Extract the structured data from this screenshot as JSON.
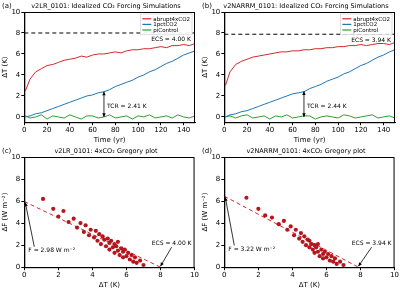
{
  "chart_data": [
    {
      "type": "line",
      "label": "(a)",
      "title": "v2LR_0101: Idealized CO₂ Forcing Simulations",
      "x_label": "Time (yr)",
      "y_label": "ΔT (K)",
      "xlim": [
        0,
        150
      ],
      "xticks": [
        0,
        20,
        40,
        60,
        80,
        100,
        120,
        140
      ],
      "ylim": [
        -0.5,
        10
      ],
      "yticks": [
        0,
        2,
        4,
        6,
        8,
        10
      ],
      "grid": false,
      "legend": "upper right",
      "x": [
        1,
        5,
        10,
        15,
        20,
        25,
        30,
        35,
        40,
        45,
        50,
        55,
        60,
        65,
        70,
        75,
        80,
        85,
        90,
        95,
        100,
        105,
        110,
        115,
        120,
        125,
        130,
        135,
        140,
        145,
        150
      ],
      "series": [
        {
          "name": "abrupt4xCO2",
          "color": "#d62728",
          "values": [
            2.5,
            3.6,
            4.3,
            4.6,
            4.9,
            5.0,
            5.2,
            5.4,
            5.5,
            5.6,
            5.8,
            5.7,
            5.9,
            6.0,
            6.0,
            6.1,
            6.2,
            6.1,
            6.3,
            6.4,
            6.4,
            6.5,
            6.5,
            6.6,
            6.7,
            6.6,
            6.8,
            6.8,
            6.9,
            6.8,
            7.0
          ]
        },
        {
          "name": "1pctCO2",
          "color": "#1f77b4",
          "values": [
            0.0,
            0.1,
            0.3,
            0.4,
            0.6,
            0.8,
            1.0,
            1.2,
            1.4,
            1.6,
            1.8,
            2.0,
            2.1,
            2.3,
            2.4,
            2.6,
            2.9,
            3.1,
            3.3,
            3.5,
            3.8,
            4.0,
            4.3,
            4.5,
            4.8,
            5.1,
            5.3,
            5.6,
            5.9,
            6.1,
            6.3
          ]
        },
        {
          "name": "piControl",
          "color": "#2ca02c",
          "values": [
            0.1,
            -0.1,
            0.0,
            0.2,
            -0.2,
            0.1,
            0.0,
            -0.1,
            0.2,
            0.0,
            -0.2,
            0.1,
            0.1,
            -0.1,
            0.0,
            0.2,
            -0.1,
            0.0,
            0.1,
            -0.2,
            0.1,
            0.0,
            0.2,
            -0.1,
            0.0,
            0.1,
            -0.1,
            0.2,
            0.0,
            -0.1,
            0.1
          ]
        }
      ],
      "hline": {
        "value": 8.0,
        "color": "#000000",
        "line_style": "dashed"
      },
      "annotations": [
        {
          "text": "ECS = 4.00 K"
        },
        {
          "text": "TCR = 2.41 K",
          "x": 70,
          "y": 2.41
        }
      ]
    },
    {
      "type": "line",
      "label": "(b)",
      "title": "v2NARRM_0101: Idealized CO₂ Forcing Simulations",
      "x_label": "Time (yr)",
      "y_label": "ΔT (K)",
      "xlim": [
        0,
        150
      ],
      "xticks": [
        0,
        20,
        40,
        60,
        80,
        100,
        120,
        140
      ],
      "ylim": [
        -0.5,
        10
      ],
      "yticks": [
        0,
        2,
        4,
        6,
        8,
        10
      ],
      "grid": false,
      "legend": "upper right",
      "x": [
        1,
        5,
        10,
        15,
        20,
        25,
        30,
        35,
        40,
        45,
        50,
        55,
        60,
        65,
        70,
        75,
        80,
        85,
        90,
        95,
        100,
        105,
        110,
        115,
        120,
        125,
        130,
        135,
        140,
        145,
        150
      ],
      "series": [
        {
          "name": "abrupt4xCO2",
          "color": "#d62728",
          "values": [
            3.0,
            4.3,
            5.0,
            5.3,
            5.5,
            5.7,
            5.8,
            5.9,
            6.0,
            6.1,
            6.2,
            6.2,
            6.3,
            6.3,
            6.4,
            6.4,
            6.5,
            6.5,
            6.6,
            6.6,
            6.7,
            6.7,
            6.8,
            6.8,
            6.9,
            6.8,
            6.9,
            7.0,
            7.0,
            6.9,
            7.1
          ]
        },
        {
          "name": "1pctCO2",
          "color": "#1f77b4",
          "values": [
            0.0,
            0.2,
            0.3,
            0.5,
            0.6,
            0.8,
            1.0,
            1.2,
            1.4,
            1.6,
            1.8,
            2.0,
            2.2,
            2.3,
            2.4,
            2.7,
            2.9,
            3.1,
            3.4,
            3.6,
            3.8,
            4.1,
            4.3,
            4.6,
            4.9,
            5.1,
            5.4,
            5.7,
            5.9,
            6.2,
            6.4
          ]
        },
        {
          "name": "piControl",
          "color": "#2ca02c",
          "values": [
            0.0,
            0.1,
            -0.1,
            0.1,
            0.2,
            -0.1,
            0.0,
            0.1,
            -0.2,
            0.1,
            0.0,
            0.2,
            -0.1,
            0.0,
            0.1,
            0.1,
            -0.2,
            0.0,
            0.1,
            0.0,
            -0.1,
            0.2,
            0.1,
            -0.1,
            0.0,
            0.1,
            0.2,
            -0.1,
            0.0,
            0.1,
            -0.1
          ]
        }
      ],
      "hline": {
        "value": 7.88,
        "color": "#000000",
        "line_style": "dashed"
      },
      "annotations": [
        {
          "text": "ECS = 3.94 K"
        },
        {
          "text": "TCR = 2.44 K",
          "x": 70,
          "y": 2.44
        }
      ]
    },
    {
      "type": "scatter",
      "label": "(c)",
      "title": "v2LR_0101: 4xCO₂ Gregory plot",
      "x_label": "ΔT (K)",
      "y_label": "ΔF (W m⁻²)",
      "xlim": [
        0,
        10
      ],
      "xticks": [
        0,
        2,
        4,
        6,
        8,
        10
      ],
      "ylim": [
        0,
        10
      ],
      "yticks": [
        0,
        2,
        4,
        6,
        8,
        10
      ],
      "grid": false,
      "points": {
        "color": "#b5161e",
        "x": [
          1.1,
          1.7,
          2.0,
          2.3,
          2.6,
          2.9,
          3.1,
          3.3,
          3.5,
          3.6,
          3.8,
          3.9,
          4.1,
          4.2,
          4.3,
          4.4,
          4.5,
          4.6,
          4.7,
          4.8,
          4.9,
          5.0,
          5.0,
          5.1,
          5.2,
          5.3,
          5.3,
          5.4,
          5.5,
          5.5,
          5.6,
          5.7,
          5.8,
          5.8,
          5.9,
          6.0,
          6.1,
          6.2,
          6.3,
          6.4,
          6.5,
          6.6,
          6.8,
          7.0
        ],
        "y": [
          6.2,
          5.3,
          4.6,
          5.1,
          4.1,
          4.4,
          3.6,
          4.0,
          3.2,
          3.8,
          2.9,
          3.4,
          2.7,
          3.3,
          2.4,
          3.0,
          2.1,
          2.8,
          2.5,
          1.9,
          2.6,
          2.2,
          1.6,
          2.4,
          1.8,
          2.1,
          1.3,
          1.9,
          1.5,
          2.3,
          1.1,
          1.7,
          1.4,
          0.9,
          1.6,
          1.0,
          1.3,
          0.7,
          1.1,
          0.5,
          0.9,
          0.4,
          0.6,
          0.2
        ]
      },
      "fit": {
        "color": "#d62728",
        "line_style": "dashed",
        "x": [
          0,
          8.0
        ],
        "values": [
          5.96,
          0
        ]
      },
      "annotations": [
        {
          "text": "F = 2.98 W m⁻²",
          "x": 0,
          "y": 5.96
        },
        {
          "text": "ECS = 4.00 K",
          "x": 8.0,
          "y": 0
        }
      ]
    },
    {
      "type": "scatter",
      "label": "(d)",
      "title": "v2NARRM_0101: 4xCO₂ Gregory plot",
      "x_label": "ΔT (K)",
      "y_label": "ΔF (W m⁻²)",
      "xlim": [
        0,
        10
      ],
      "xticks": [
        0,
        2,
        4,
        6,
        8,
        10
      ],
      "ylim": [
        0,
        10
      ],
      "yticks": [
        0,
        2,
        4,
        6,
        8,
        10
      ],
      "grid": false,
      "points": {
        "color": "#b5161e",
        "x": [
          1.3,
          2.0,
          2.4,
          2.8,
          3.2,
          3.5,
          3.7,
          3.9,
          4.1,
          4.2,
          4.4,
          4.5,
          4.6,
          4.7,
          4.8,
          4.9,
          5.0,
          5.0,
          5.1,
          5.2,
          5.3,
          5.3,
          5.4,
          5.5,
          5.5,
          5.6,
          5.7,
          5.8,
          5.8,
          5.9,
          6.0,
          6.1,
          6.2,
          6.3,
          6.4,
          6.5,
          6.6,
          6.8,
          7.0
        ],
        "y": [
          6.3,
          5.3,
          4.7,
          4.5,
          3.9,
          4.2,
          3.4,
          3.7,
          2.9,
          3.4,
          2.6,
          3.1,
          2.3,
          2.8,
          2.0,
          2.5,
          1.8,
          2.4,
          2.1,
          1.6,
          2.0,
          1.3,
          1.8,
          1.4,
          2.1,
          1.0,
          1.6,
          1.2,
          0.8,
          1.4,
          0.9,
          1.2,
          0.6,
          1.0,
          0.5,
          0.8,
          0.3,
          0.5,
          0.2
        ]
      },
      "fit": {
        "color": "#d62728",
        "line_style": "dashed",
        "x": [
          0,
          7.88
        ],
        "values": [
          6.44,
          0
        ]
      },
      "annotations": [
        {
          "text": "F = 3.22 W m⁻²",
          "x": 0,
          "y": 6.44
        },
        {
          "text": "ECS = 3.94 K",
          "x": 7.88,
          "y": 0
        }
      ]
    }
  ]
}
